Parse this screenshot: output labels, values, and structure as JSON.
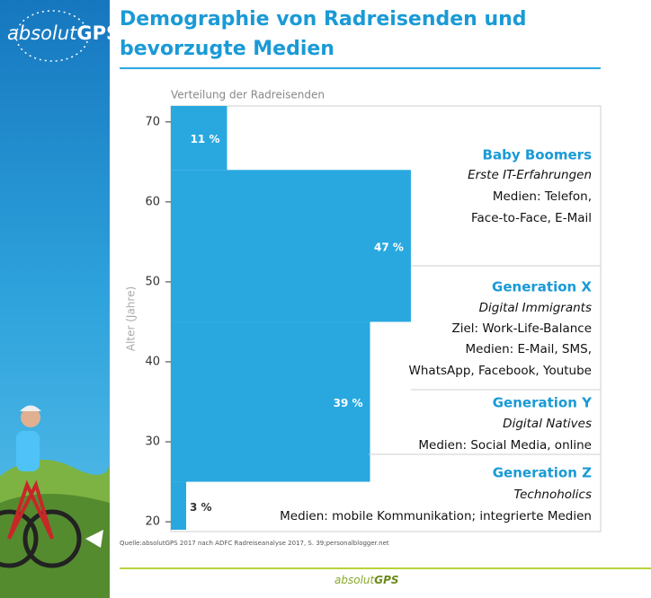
{
  "logo": [
    "absolut",
    "GPS"
  ],
  "chart_data": {
    "type": "histogram",
    "orientation": "horizontal",
    "title": "Demographie von Radreisenden und bevorzugte Medien",
    "subtitle": "Verteilung der Radreisenden",
    "y_label": "Alter (Jahre)",
    "bins": [
      19,
      25,
      45,
      64,
      72
    ],
    "values": [
      3,
      39,
      47,
      11
    ],
    "value_labels": [
      "3 %",
      "39 %",
      "47 %",
      "11 %"
    ],
    "color": "#29a8e0",
    "ylim": [
      19,
      72
    ],
    "yticks": [
      20,
      30,
      40,
      50,
      60,
      70
    ],
    "groups": [
      {
        "name": "Generation Z",
        "lines": [
          "Technoholics",
          "Medien: mobile Kommunikation;  integrierte Medien"
        ]
      },
      {
        "name": "Generation Y",
        "lines": [
          "Digital Natives",
          "Medien: Social Media, online"
        ]
      },
      {
        "name": "Generation X",
        "lines": [
          "Digital Immigrants",
          "Ziel: Work-Life-Balance",
          "Medien: E-Mail, SMS,",
          "WhatsApp, Facebook, Youtube"
        ]
      },
      {
        "name": "Baby Boomers",
        "lines": [
          "Erste IT-Erfahrungen",
          "Medien: Telefon,",
          "Face-to-Face, E-Mail"
        ]
      }
    ],
    "source": "Quelle:absolutGPS 2017 nach ADFC Radreiseanalyse 2017, S. 39;personalblogger.net"
  },
  "footer": [
    "absolut",
    "GPS"
  ]
}
